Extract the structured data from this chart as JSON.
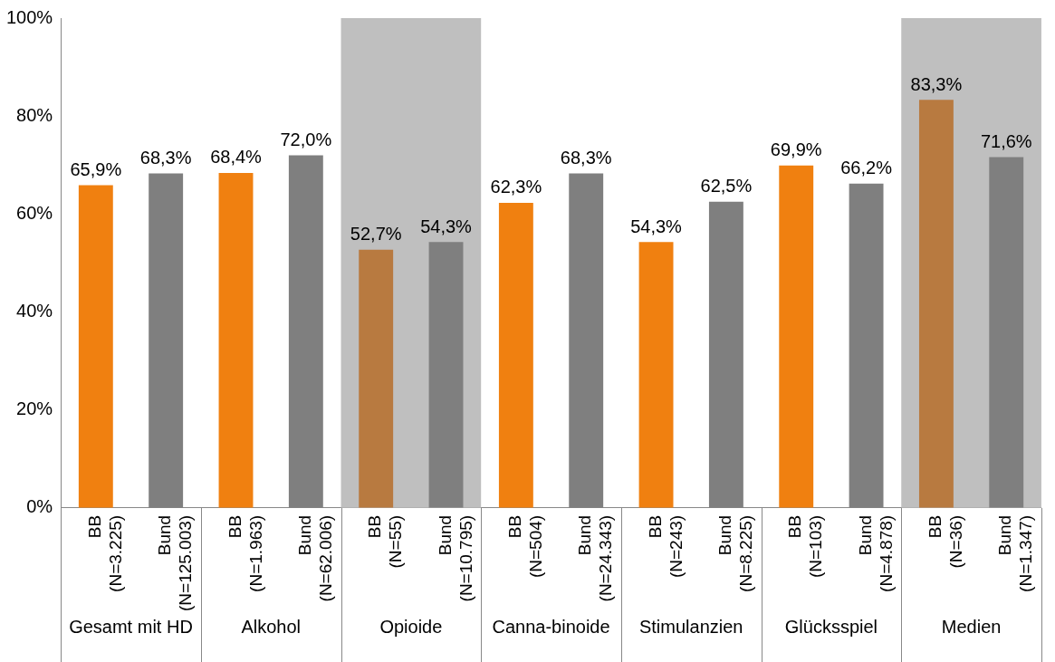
{
  "chart_data": {
    "type": "bar",
    "categories": [
      "BB (N=3.225)",
      "Bund (N=125.003)",
      "BB (N=1.963)",
      "Bund (N=62.006)",
      "BB (N=55)",
      "Bund (N=10.795)",
      "BB (N=504)",
      "Bund (N=24.343)",
      "BB (N=243)",
      "Bund (N=8.225)",
      "BB (N=103)",
      "Bund (N=4.878)",
      "BB (N=36)",
      "Bund (N=1.347)"
    ],
    "values": [
      65.9,
      68.3,
      68.4,
      72.0,
      52.7,
      54.3,
      62.3,
      68.3,
      54.3,
      62.5,
      69.9,
      66.2,
      83.3,
      71.6
    ],
    "colors": [
      "#f08010",
      "#7f7f7f",
      "#f08010",
      "#7f7f7f",
      "#b87a40",
      "#7f7f7f",
      "#f08010",
      "#7f7f7f",
      "#f08010",
      "#7f7f7f",
      "#f08010",
      "#7f7f7f",
      "#b87a40",
      "#7f7f7f"
    ],
    "ylim": [
      0,
      100
    ],
    "yticks": [
      {
        "value": 0,
        "label": "0%"
      },
      {
        "value": 20,
        "label": "20%"
      },
      {
        "value": 40,
        "label": "40%"
      },
      {
        "value": 60,
        "label": "60%"
      },
      {
        "value": 80,
        "label": "80%"
      },
      {
        "value": 100,
        "label": "100%"
      }
    ],
    "value_labels": [
      "65,9%",
      "68,3%",
      "68,4%",
      "72,0%",
      "52,7%",
      "54,3%",
      "62,3%",
      "68,3%",
      "54,3%",
      "62,5%",
      "69,9%",
      "66,2%",
      "83,3%",
      "71,6%"
    ],
    "bands": [
      {
        "axis": "x",
        "from": "BB (N=55)",
        "to": "Bund (N=10.795)",
        "color": "#bfbfbf"
      },
      {
        "axis": "x",
        "from": "BB (N=36)",
        "to": "Bund (N=1.347)",
        "color": "#bfbfbf"
      }
    ],
    "annotations": [
      "Gesamt mit HD",
      "Alkohol",
      "Opioide",
      "Canna-binoide",
      "Stimulanzien",
      "Glücksspiel",
      "Medien"
    ],
    "grid": false,
    "legend": false
  }
}
